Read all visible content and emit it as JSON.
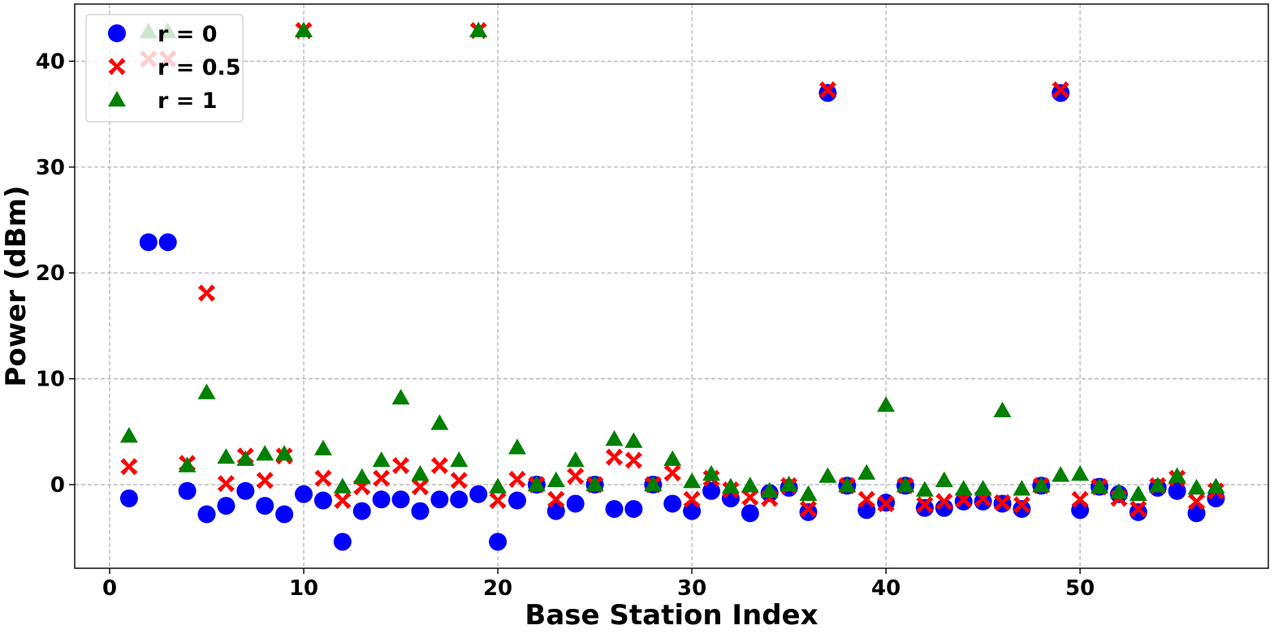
{
  "chart_data": {
    "type": "scatter",
    "xlabel": "Base Station Index",
    "ylabel": "Power (dBm)",
    "xlim": [
      -1.8,
      59.7
    ],
    "ylim": [
      -7.9,
      45.4
    ],
    "xticks": [
      0,
      10,
      20,
      30,
      40,
      50
    ],
    "yticks": [
      0,
      10,
      20,
      30,
      40
    ],
    "grid": true,
    "legend_position": "upper-left",
    "series": [
      {
        "name": "r = 0",
        "marker": "circle",
        "color": "#0000ff",
        "x": [
          1,
          2,
          3,
          4,
          5,
          6,
          7,
          8,
          9,
          10,
          11,
          12,
          13,
          14,
          15,
          16,
          17,
          18,
          19,
          20,
          21,
          22,
          23,
          24,
          25,
          26,
          27,
          28,
          29,
          30,
          31,
          32,
          33,
          34,
          35,
          36,
          37,
          38,
          39,
          40,
          41,
          42,
          43,
          44,
          45,
          46,
          47,
          48,
          49,
          50,
          51,
          52,
          53,
          54,
          55,
          56,
          57
        ],
        "y": [
          -1.3,
          22.9,
          22.9,
          -0.6,
          -2.8,
          -2.0,
          -0.6,
          -2.0,
          -2.8,
          -0.9,
          -1.5,
          -5.4,
          -2.5,
          -1.4,
          -1.4,
          -2.5,
          -1.4,
          -1.4,
          -0.9,
          -5.4,
          -1.5,
          0.0,
          -2.5,
          -1.8,
          0.0,
          -2.3,
          -2.3,
          0.0,
          -1.8,
          -2.5,
          -0.6,
          -1.3,
          -2.7,
          -0.8,
          -0.3,
          -2.6,
          37.0,
          -0.1,
          -2.4,
          -1.7,
          -0.1,
          -2.2,
          -2.2,
          -1.6,
          -1.6,
          -1.8,
          -2.3,
          -0.1,
          37.0,
          -2.4,
          -0.2,
          -0.9,
          -2.6,
          -0.3,
          -0.6,
          -2.7,
          -1.3
        ]
      },
      {
        "name": "r = 0.5",
        "marker": "x",
        "color": "#ff0000",
        "x": [
          1,
          2,
          3,
          4,
          5,
          6,
          7,
          8,
          9,
          10,
          11,
          12,
          13,
          14,
          15,
          16,
          17,
          18,
          19,
          20,
          21,
          22,
          23,
          24,
          25,
          26,
          27,
          28,
          29,
          30,
          31,
          32,
          33,
          34,
          35,
          36,
          37,
          38,
          39,
          40,
          41,
          42,
          43,
          44,
          45,
          46,
          47,
          48,
          49,
          50,
          51,
          52,
          53,
          54,
          55,
          56,
          57
        ],
        "y": [
          1.7,
          40.2,
          40.2,
          2.0,
          18.1,
          0.1,
          2.7,
          0.4,
          2.7,
          42.9,
          0.6,
          -1.5,
          -0.2,
          0.6,
          1.8,
          -0.2,
          1.8,
          0.4,
          42.9,
          -1.5,
          0.5,
          0.0,
          -1.4,
          0.8,
          0.0,
          2.6,
          2.3,
          0.0,
          1.1,
          -1.4,
          0.6,
          -0.5,
          -1.2,
          -1.3,
          -0.1,
          -2.3,
          37.3,
          -0.1,
          -1.4,
          -1.8,
          -0.1,
          -1.9,
          -1.6,
          -1.4,
          -1.3,
          -1.7,
          -1.9,
          -0.1,
          37.3,
          -1.4,
          -0.2,
          -1.3,
          -2.3,
          -0.1,
          0.6,
          -1.6,
          -0.6
        ]
      },
      {
        "name": "r = 1",
        "marker": "triangle",
        "color": "#008000",
        "x": [
          1,
          2,
          3,
          4,
          5,
          6,
          7,
          8,
          9,
          10,
          11,
          12,
          13,
          14,
          15,
          16,
          17,
          18,
          19,
          20,
          21,
          22,
          23,
          24,
          25,
          26,
          27,
          28,
          29,
          30,
          31,
          32,
          33,
          34,
          35,
          36,
          37,
          38,
          39,
          40,
          41,
          42,
          43,
          44,
          45,
          46,
          47,
          48,
          49,
          50,
          51,
          52,
          53,
          54,
          55,
          56,
          57
        ],
        "y": [
          4.6,
          42.8,
          42.8,
          1.8,
          8.7,
          2.6,
          2.4,
          2.9,
          2.9,
          42.9,
          3.4,
          -0.2,
          0.7,
          2.3,
          8.2,
          1.0,
          5.8,
          2.3,
          42.9,
          -0.2,
          3.5,
          0.0,
          0.4,
          2.3,
          0.0,
          4.3,
          4.1,
          0.0,
          2.4,
          0.3,
          1.0,
          -0.2,
          -0.1,
          -0.6,
          0.0,
          -0.9,
          0.8,
          -0.1,
          1.1,
          7.5,
          -0.1,
          -0.5,
          0.4,
          -0.4,
          -0.4,
          7.0,
          -0.4,
          -0.1,
          0.9,
          1.0,
          -0.2,
          -0.7,
          -0.9,
          -0.1,
          0.8,
          -0.3,
          -0.2
        ]
      }
    ]
  }
}
